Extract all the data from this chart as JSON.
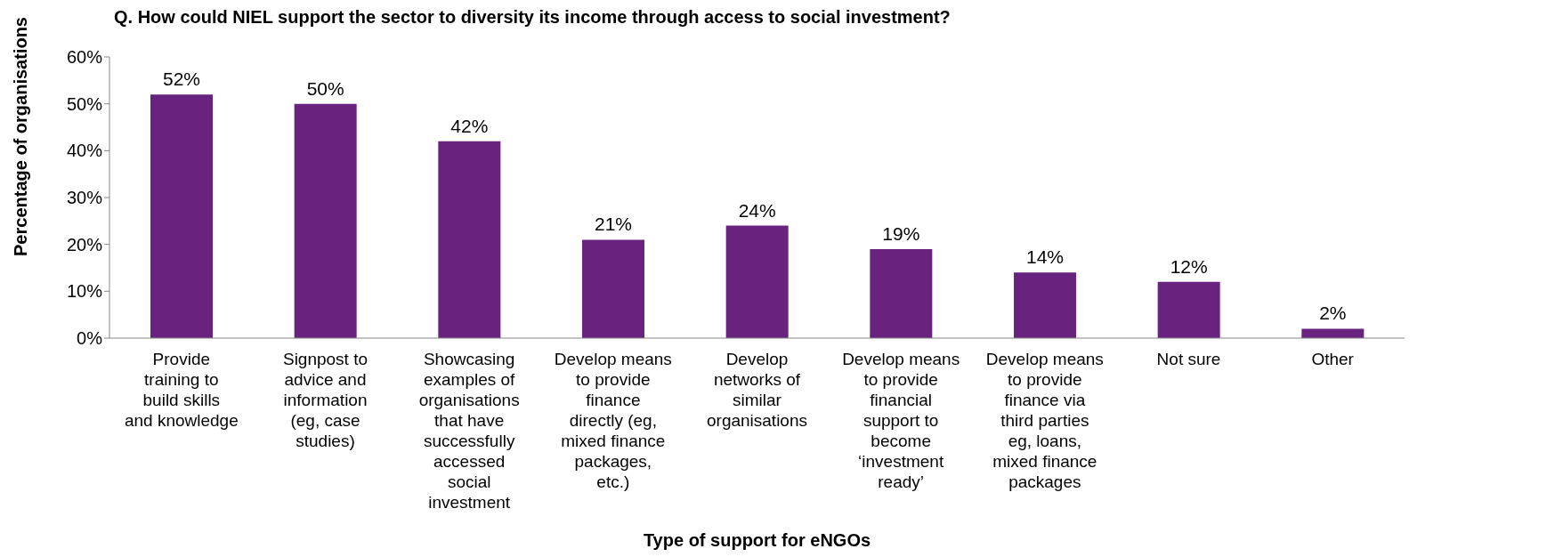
{
  "chart_data": {
    "type": "bar",
    "title": "Q. How could NIEL support the sector to diversity its income through access to social investment?",
    "xlabel": "Type of support for eNGOs",
    "ylabel": "Percentage of organisations",
    "categories": [
      "Provide training to build skills and knowledge",
      "Signpost to advice and information (eg, case studies)",
      "Showcasing examples of organisations that have successfully accessed social investment",
      "Develop means to provide finance directly (eg, mixed finance packages, etc.)",
      "Develop networks of similar organisations",
      "Develop means to provide financial support to become ‘investment ready’",
      "Develop means to provide finance via third parties eg, loans, mixed finance packages",
      "Not sure",
      "Other"
    ],
    "values": [
      52,
      50,
      42,
      21,
      24,
      19,
      14,
      12,
      2
    ],
    "value_labels": [
      "52%",
      "50%",
      "42%",
      "21%",
      "24%",
      "19%",
      "14%",
      "12%",
      "2%"
    ],
    "color": "#68237f",
    "ylim": [
      0,
      60
    ],
    "yticks": [
      {
        "value": 0,
        "label": "0%"
      },
      {
        "value": 10,
        "label": "10%"
      },
      {
        "value": 20,
        "label": "20%"
      },
      {
        "value": 30,
        "label": "30%"
      },
      {
        "value": 40,
        "label": "40%"
      },
      {
        "value": 50,
        "label": "50%"
      },
      {
        "value": 60,
        "label": "60%"
      }
    ],
    "grid": false,
    "legend": false
  }
}
